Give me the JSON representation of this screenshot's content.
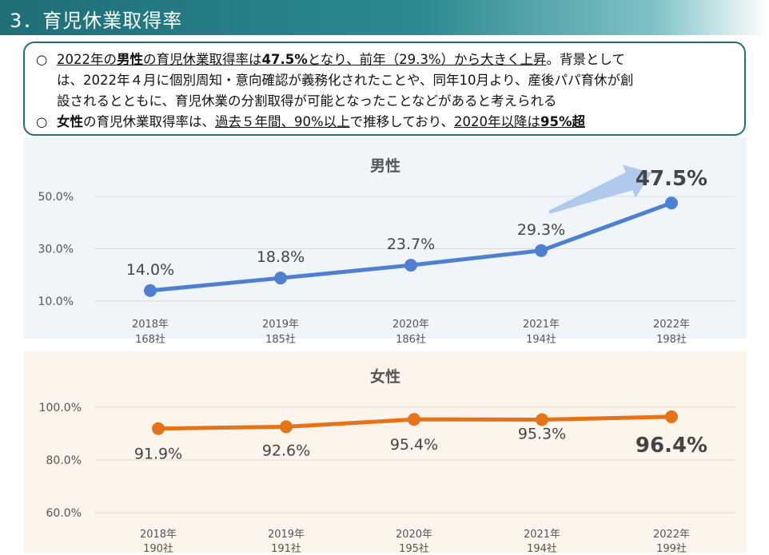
{
  "header": {
    "title": "3．育児休業取得率"
  },
  "summary": {
    "b1_mark": "○",
    "b1_t1": "2022年の",
    "b1_t2": "男性",
    "b1_t3": "の育児休業取得率は",
    "b1_t4": "47.5%",
    "b1_t5": "となり、前年（29.3%）から大きく上昇",
    "b1_t6": "。背景として",
    "b1_line2": "は、2022年４月に個別周知・意向確認が義務化されたことや、同年10月より、産後パパ育休が創",
    "b1_line3": "設されるとともに、育児休業の分割取得が可能となったことなどがあると考えられる",
    "b2_mark": "○",
    "b2_t1": "女性",
    "b2_t2": "の育児休業取得率は、",
    "b2_t3": "過去５年間、90%以上",
    "b2_t4": "で推移しており、",
    "b2_t5": "2020年以降は",
    "b2_t6": "95%超"
  },
  "colors": {
    "male": "#4e7fd0",
    "female": "#e4731a",
    "arrow": "#a9c4ea"
  },
  "chart_data": [
    {
      "type": "line",
      "title": "男性",
      "categories": [
        "2018年",
        "2019年",
        "2020年",
        "2021年",
        "2022年"
      ],
      "companies": [
        "168社",
        "185社",
        "186社",
        "194社",
        "198社"
      ],
      "values": [
        14.0,
        18.8,
        23.7,
        29.3,
        47.5
      ],
      "labels": [
        "14.0%",
        "18.8%",
        "23.7%",
        "29.3%",
        "47.5%"
      ],
      "yticks": [
        "10.0%",
        "30.0%",
        "50.0%"
      ],
      "ytick_values": [
        10,
        30,
        50
      ],
      "ylim": [
        10,
        50
      ],
      "highlight_last": true,
      "annotation": "upward-arrow"
    },
    {
      "type": "line",
      "title": "女性",
      "categories": [
        "2018年",
        "2019年",
        "2020年",
        "2021年",
        "2022年"
      ],
      "companies": [
        "190社",
        "191社",
        "195社",
        "194社",
        "199社"
      ],
      "values": [
        91.9,
        92.6,
        95.4,
        95.3,
        96.4
      ],
      "labels": [
        "91.9%",
        "92.6%",
        "95.4%",
        "95.3%",
        "96.4%"
      ],
      "yticks": [
        "60.0%",
        "80.0%",
        "100.0%"
      ],
      "ytick_values": [
        60,
        80,
        100
      ],
      "ylim": [
        60,
        100
      ],
      "highlight_last": true
    }
  ]
}
